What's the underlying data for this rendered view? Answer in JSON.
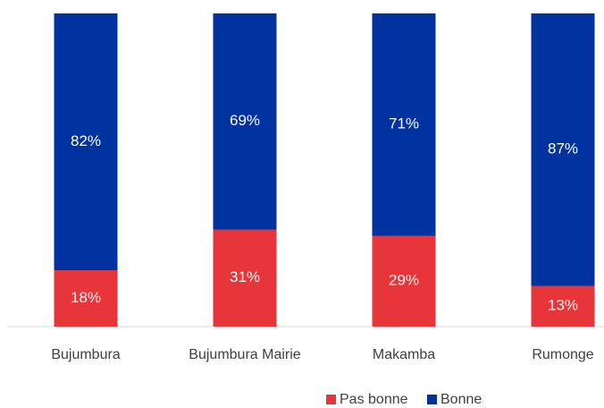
{
  "chart_data": {
    "type": "stacked_bar",
    "categories": [
      "Bujumbura",
      "Bujumbura Mairie",
      "Makamba",
      "Rumonge"
    ],
    "series": [
      {
        "name": "Pas bonne",
        "color": "#e8353a",
        "values": [
          18,
          31,
          29,
          13
        ],
        "value_labels": [
          "18%",
          "31%",
          "29%",
          "13%"
        ]
      },
      {
        "name": "Bonne",
        "color": "#0033a0",
        "values": [
          82,
          69,
          71,
          87
        ],
        "value_labels": [
          "82%",
          "69%",
          "71%",
          "87%"
        ]
      }
    ],
    "ylim": [
      0,
      100
    ],
    "legend": "bottom"
  }
}
